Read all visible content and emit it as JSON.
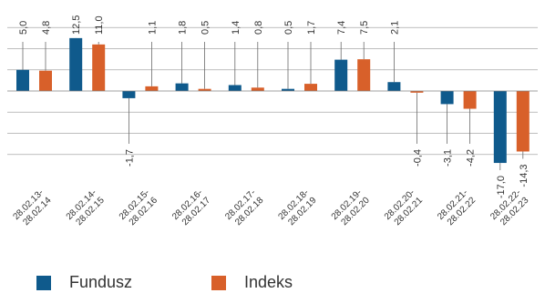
{
  "chart_data": {
    "type": "bar",
    "categories": [
      [
        "28.02.13-",
        "28.02.14"
      ],
      [
        "28.02.14-",
        "28.02.15"
      ],
      [
        "28.02.15-",
        "28.02.16"
      ],
      [
        "28.02.16-",
        "28.02.17"
      ],
      [
        "28.02.17-",
        "28.02.18"
      ],
      [
        "28.02.18-",
        "28.02.19"
      ],
      [
        "28.02.19-",
        "28.02.20"
      ],
      [
        "28.02.20-",
        "28.02.21"
      ],
      [
        "28.02.21-",
        "28.02.22"
      ],
      [
        "28.02.22-",
        "28.02.23"
      ]
    ],
    "series": [
      {
        "name": "Fundusz",
        "color": "#0f5a8c",
        "values": [
          5.0,
          12.5,
          -1.7,
          1.8,
          1.4,
          0.5,
          7.4,
          2.1,
          -3.1,
          -17.0
        ],
        "labels": [
          "5,0",
          "12,5",
          "-1,7",
          "1,8",
          "1,4",
          "0,5",
          "7,4",
          "2,1",
          "-3,1",
          "-17,0"
        ]
      },
      {
        "name": "Indeks",
        "color": "#d8602a",
        "values": [
          4.8,
          11.0,
          1.1,
          0.5,
          0.8,
          1.7,
          7.5,
          -0.4,
          -4.2,
          -14.3
        ],
        "labels": [
          "4,8",
          "11,0",
          "1,1",
          "0,5",
          "0,8",
          "1,7",
          "7,5",
          "-0,4",
          "-4,2",
          "-14,3"
        ]
      }
    ],
    "ylim": [
      -18,
      17
    ],
    "grid": true,
    "legend_position": "bottom-left"
  }
}
